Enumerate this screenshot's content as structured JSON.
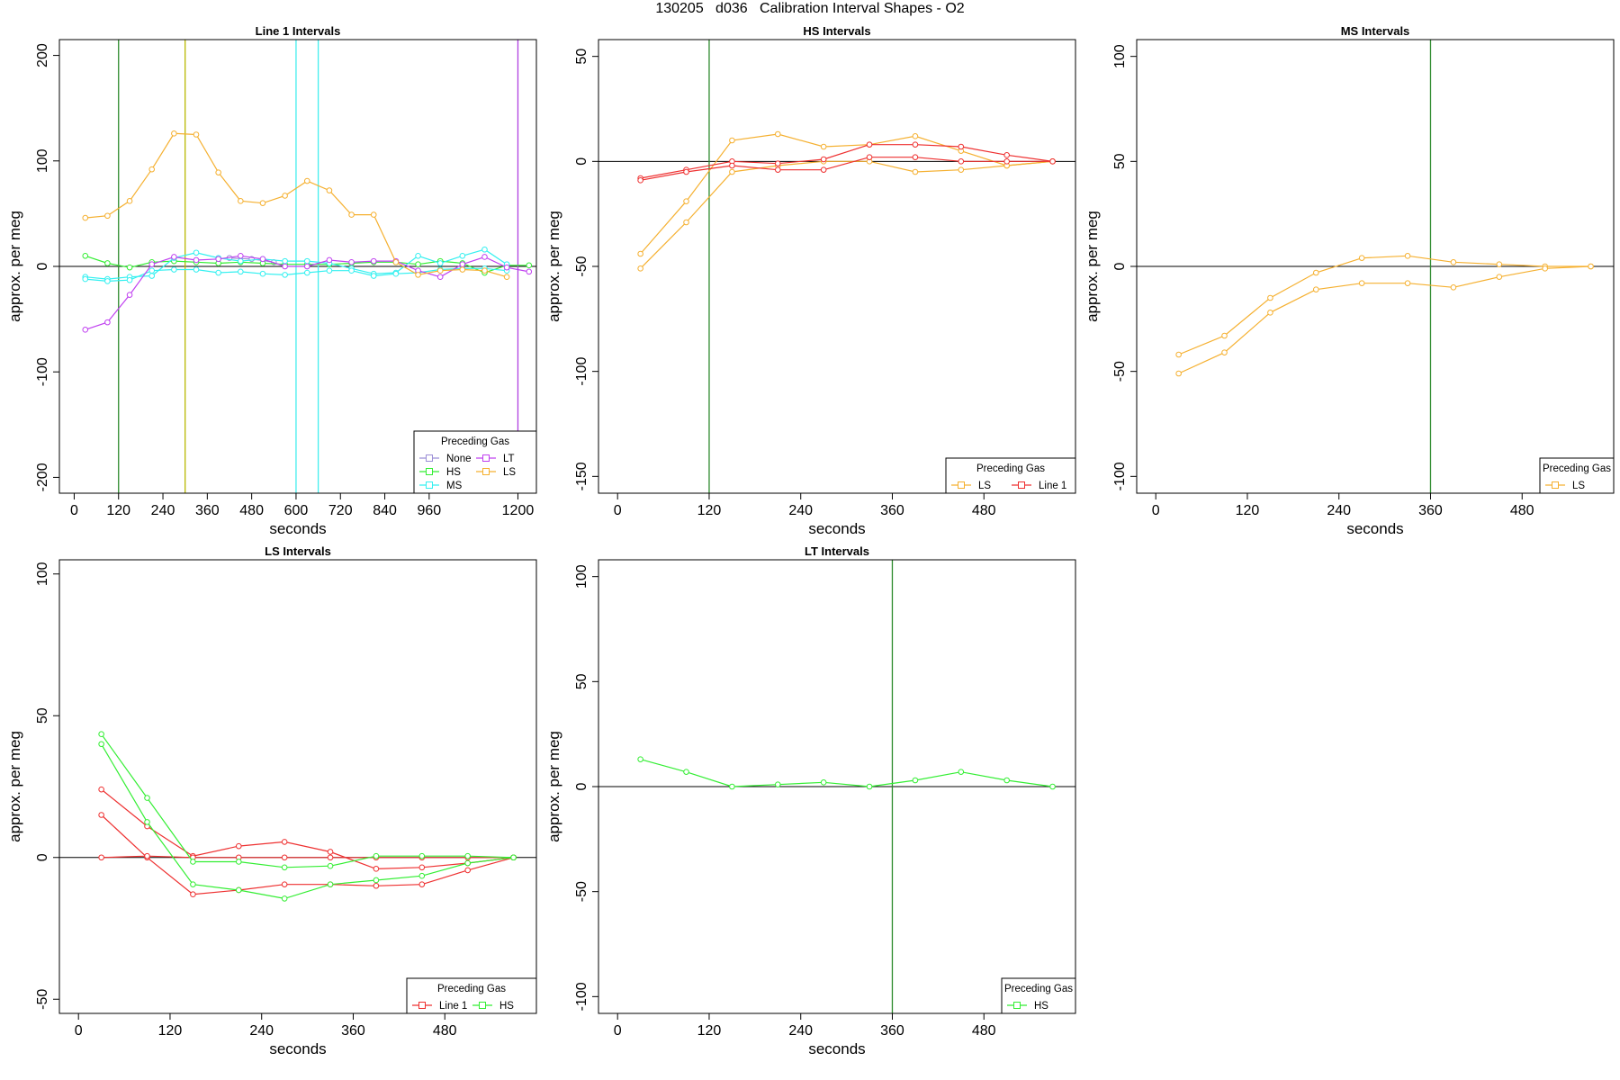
{
  "title": "130205   d036   Calibration Interval Shapes - O2",
  "colors": {
    "None": "#9c8fd6",
    "HS": "#33ee33",
    "MS": "#33f0f0",
    "LT": "#c040f0",
    "LS": "#f5b030",
    "Line 1": "#ee3030"
  },
  "chart_data": [
    {
      "type": "line",
      "title": "Line 1 Intervals",
      "xlabel": "seconds",
      "ylabel": "approx. per meg",
      "xlim": [
        -40,
        1250
      ],
      "ylim": [
        -215,
        215
      ],
      "xticks": [
        0,
        120,
        240,
        360,
        480,
        600,
        720,
        840,
        960,
        1200
      ],
      "yticks": [
        -200,
        -100,
        0,
        100,
        200
      ],
      "legend": {
        "title": "Preceding Gas",
        "position": "bottom-right",
        "entries": [
          "None",
          "LT",
          "HS",
          "LS",
          "MS"
        ],
        "columns": 2
      },
      "vlines": [
        {
          "x": 120,
          "series": "HS"
        },
        {
          "x": 300,
          "series": "LS"
        },
        {
          "x": 600,
          "series": "MS"
        },
        {
          "x": 660,
          "series": "MS"
        },
        {
          "x": 1200,
          "series": "LT"
        }
      ],
      "series": [
        {
          "name": "None",
          "x": [
            420,
            480,
            540
          ],
          "y": [
            8,
            7,
            4
          ]
        },
        {
          "name": "HS",
          "x": [
            30,
            90,
            150,
            210,
            270,
            330,
            390,
            450,
            510,
            570,
            630,
            690,
            750,
            810,
            870,
            930,
            990,
            1050,
            1110,
            1170,
            1230
          ],
          "y": [
            10,
            3,
            -1,
            4,
            5,
            4,
            3,
            4,
            3,
            2,
            2,
            2,
            3,
            4,
            4,
            2,
            5,
            3,
            -6,
            1,
            1
          ]
        },
        {
          "name": "MS",
          "x": [
            30,
            90,
            150,
            210,
            270,
            330,
            390,
            450,
            510,
            570,
            630,
            690,
            750,
            810,
            870,
            930,
            990,
            1050,
            1110,
            1170
          ],
          "y": [
            -10,
            -12,
            -10,
            -9,
            8,
            13,
            8,
            5,
            7,
            5,
            5,
            3,
            -2,
            -7,
            -6,
            10,
            3,
            10,
            16,
            2
          ]
        },
        {
          "name": "MS",
          "x": [
            30,
            90,
            150,
            210,
            270,
            330,
            390,
            450,
            510,
            570,
            630,
            690,
            750,
            810,
            870,
            930,
            990,
            1050,
            1110,
            1170
          ],
          "y": [
            -12,
            -14,
            -13,
            -4,
            -3,
            -3,
            -6,
            -5,
            -7,
            -8,
            -6,
            -4,
            -4,
            -9,
            -7,
            -6,
            -3,
            -2,
            -2,
            -4
          ]
        },
        {
          "name": "LT",
          "x": [
            30,
            90,
            150,
            210,
            270,
            330,
            390,
            450,
            510,
            570,
            630,
            690,
            750,
            810,
            870,
            930,
            990,
            1050,
            1110,
            1170,
            1230
          ],
          "y": [
            -60,
            -53,
            -27,
            2,
            9,
            6,
            7,
            10,
            7,
            0,
            0,
            6,
            4,
            5,
            5,
            -4,
            -10,
            2,
            9,
            -1,
            -5
          ]
        },
        {
          "name": "LS",
          "x": [
            30,
            90,
            150,
            210,
            270,
            330,
            390,
            450,
            510,
            570,
            630,
            690,
            750,
            810,
            870,
            930,
            990,
            1050,
            1110,
            1170
          ],
          "y": [
            46,
            48,
            62,
            92,
            126,
            125,
            89,
            62,
            60,
            67,
            81,
            72,
            49,
            49,
            4,
            -8,
            -4,
            -3,
            -4,
            -10
          ]
        }
      ]
    },
    {
      "type": "line",
      "title": "HS Intervals",
      "xlabel": "seconds",
      "ylabel": "approx. per meg",
      "xlim": [
        -25,
        600
      ],
      "ylim": [
        -158,
        58
      ],
      "xticks": [
        0,
        120,
        240,
        360,
        480
      ],
      "yticks": [
        -150,
        -100,
        -50,
        0,
        50
      ],
      "legend": {
        "title": "Preceding Gas",
        "position": "bottom-right",
        "entries": [
          "LS",
          "Line 1"
        ],
        "columns": 2
      },
      "vlines": [
        {
          "x": 120,
          "series": "HS"
        }
      ],
      "series": [
        {
          "name": "LS",
          "x": [
            30,
            90,
            150,
            210,
            270,
            330,
            390,
            450,
            510,
            570
          ],
          "y": [
            -44,
            -19,
            10,
            13,
            7,
            8,
            12,
            5,
            -2,
            0
          ]
        },
        {
          "name": "LS",
          "x": [
            30,
            90,
            150,
            210,
            270,
            330,
            390,
            450,
            510,
            570
          ],
          "y": [
            -51,
            -29,
            -5,
            -2,
            0,
            0,
            -5,
            -4,
            -2,
            0
          ]
        },
        {
          "name": "Line 1",
          "x": [
            30,
            90,
            150,
            210,
            270,
            330,
            390,
            450,
            510,
            570
          ],
          "y": [
            -8,
            -4,
            0,
            -1,
            1,
            8,
            8,
            7,
            3,
            0
          ]
        },
        {
          "name": "Line 1",
          "x": [
            30,
            90,
            150,
            210,
            270,
            330,
            390,
            450,
            510,
            570
          ],
          "y": [
            -9,
            -5,
            -2,
            -4,
            -4,
            2,
            2,
            0,
            0,
            0
          ]
        }
      ]
    },
    {
      "type": "line",
      "title": "MS Intervals",
      "xlabel": "seconds",
      "ylabel": "approx. per meg",
      "xlim": [
        -25,
        600
      ],
      "ylim": [
        -108,
        108
      ],
      "xticks": [
        0,
        120,
        240,
        360,
        480
      ],
      "yticks": [
        -100,
        -50,
        0,
        50,
        100
      ],
      "legend": {
        "title": "Preceding Gas",
        "position": "bottom-right",
        "entries": [
          "LS"
        ],
        "columns": 1
      },
      "vlines": [
        {
          "x": 360,
          "series": "HS"
        }
      ],
      "series": [
        {
          "name": "LS",
          "x": [
            30,
            90,
            150,
            210,
            270,
            330,
            390,
            450,
            510,
            570
          ],
          "y": [
            -42,
            -33,
            -15,
            -3,
            4,
            5,
            2,
            1,
            0,
            0
          ]
        },
        {
          "name": "LS",
          "x": [
            30,
            90,
            150,
            210,
            270,
            330,
            390,
            450,
            510,
            570
          ],
          "y": [
            -51,
            -41,
            -22,
            -11,
            -8,
            -8,
            -10,
            -5,
            -1,
            0
          ]
        }
      ]
    },
    {
      "type": "line",
      "title": "LS Intervals",
      "xlabel": "seconds",
      "ylabel": "approx. per meg",
      "xlim": [
        -25,
        600
      ],
      "ylim": [
        -55,
        105
      ],
      "xticks": [
        0,
        120,
        240,
        360,
        480
      ],
      "yticks": [
        -50,
        0,
        50,
        100
      ],
      "legend": {
        "title": "Preceding Gas",
        "position": "bottom-right",
        "entries": [
          "Line 1",
          "HS"
        ],
        "columns": 2
      },
      "vlines": [],
      "series": [
        {
          "name": "Line 1",
          "x": [
            30,
            90,
            150,
            210,
            270,
            330,
            390,
            450,
            510,
            570
          ],
          "y": [
            24,
            11,
            0.5,
            4,
            5.5,
            2,
            -4,
            -3.5,
            -2,
            0
          ]
        },
        {
          "name": "Line 1",
          "x": [
            30,
            90,
            150,
            210,
            270,
            330,
            390,
            450,
            510,
            570
          ],
          "y": [
            15,
            0,
            -13,
            -11.5,
            -9.5,
            -9.5,
            -10,
            -9.5,
            -4.5,
            0
          ]
        },
        {
          "name": "Line 1",
          "x": [
            30,
            90,
            150,
            210,
            270,
            330,
            390,
            450,
            510,
            570
          ],
          "y": [
            0,
            0.5,
            0,
            0,
            0,
            0,
            0,
            0,
            0,
            0
          ]
        },
        {
          "name": "HS",
          "x": [
            30,
            90,
            150,
            210,
            270,
            330,
            390,
            450,
            510,
            570
          ],
          "y": [
            43.5,
            21,
            -1.5,
            -1.5,
            -3.5,
            -3,
            0.5,
            0.5,
            0.5,
            0
          ]
        },
        {
          "name": "HS",
          "x": [
            30,
            90,
            150,
            210,
            270,
            330,
            390,
            450,
            510,
            570
          ],
          "y": [
            40,
            12.5,
            -9.5,
            -11.5,
            -14.5,
            -9.5,
            -8,
            -6.5,
            -2,
            0
          ]
        }
      ]
    },
    {
      "type": "line",
      "title": "LT Intervals",
      "xlabel": "seconds",
      "ylabel": "approx. per meg",
      "xlim": [
        -25,
        600
      ],
      "ylim": [
        -108,
        108
      ],
      "xticks": [
        0,
        120,
        240,
        360,
        480
      ],
      "yticks": [
        -100,
        -50,
        0,
        50,
        100
      ],
      "legend": {
        "title": "Preceding Gas",
        "position": "bottom-right",
        "entries": [
          "HS"
        ],
        "columns": 1
      },
      "vlines": [
        {
          "x": 360,
          "series": "HS"
        }
      ],
      "series": [
        {
          "name": "HS",
          "x": [
            30,
            90,
            150,
            210,
            270,
            330,
            390,
            450,
            510,
            570
          ],
          "y": [
            13,
            7,
            0,
            1,
            2,
            0,
            3,
            7,
            3,
            0
          ]
        }
      ]
    }
  ]
}
